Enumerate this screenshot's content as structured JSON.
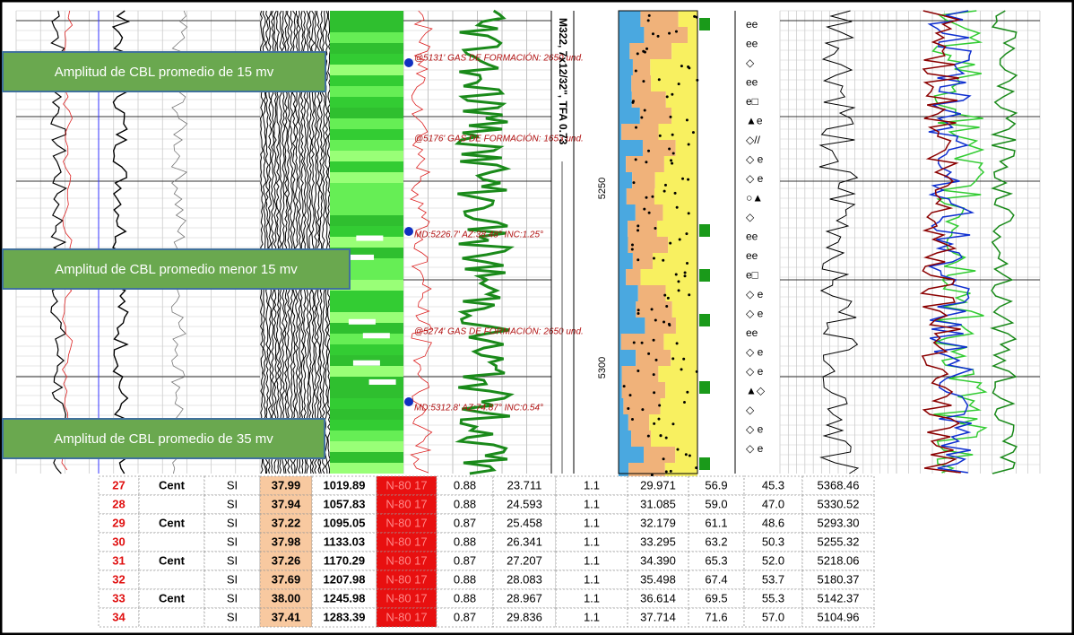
{
  "callouts": [
    "Amplitud de CBL promedio de 15 mv",
    "Amplitud de CBL promedio menor 15 mv",
    "Amplitud de CBL promedio de 35 mv"
  ],
  "annotations": [
    "@5131' GAS DE FORMACIÓN: 2650 und.",
    "@5176' GAS DE FORMACIÓN: 1653 und.",
    "MD:5226.7' AZ:38.48° INC:1.25°",
    "@5274' GAS DE FORMACIÓN: 2650 und.",
    "MD:5312.8' AZ:74.87° INC:0.54°"
  ],
  "vertical_label": "M322, 7x12/32'', TFA 0.73",
  "depth_labels": [
    "5250",
    "5300"
  ],
  "table": {
    "rows": [
      [
        "27",
        "Cent",
        "SI",
        "37.99",
        "1019.89",
        "N-80 17",
        "0.88",
        "23.711",
        "1.1",
        "29.971",
        "56.9",
        "45.3",
        "5368.46"
      ],
      [
        "28",
        null,
        "SI",
        "37.94",
        "1057.83",
        "N-80 17",
        "0.88",
        "24.593",
        "1.1",
        "31.085",
        "59.0",
        "47.0",
        "5330.52"
      ],
      [
        "29",
        "Cent",
        "SI",
        "37.22",
        "1095.05",
        "N-80 17",
        "0.87",
        "25.458",
        "1.1",
        "32.179",
        "61.1",
        "48.6",
        "5293.30"
      ],
      [
        "30",
        null,
        "SI",
        "37.98",
        "1133.03",
        "N-80 17",
        "0.88",
        "26.341",
        "1.1",
        "33.295",
        "63.2",
        "50.3",
        "5255.32"
      ],
      [
        "31",
        "Cent",
        "SI",
        "37.26",
        "1170.29",
        "N-80 17",
        "0.87",
        "27.207",
        "1.1",
        "34.390",
        "65.3",
        "52.0",
        "5218.06"
      ],
      [
        "32",
        null,
        "SI",
        "37.69",
        "1207.98",
        "N-80 17",
        "0.88",
        "28.083",
        "1.1",
        "35.498",
        "67.4",
        "53.7",
        "5180.37"
      ],
      [
        "33",
        "Cent",
        "SI",
        "38.00",
        "1245.98",
        "N-80 17",
        "0.88",
        "28.967",
        "1.1",
        "36.614",
        "69.5",
        "55.3",
        "5142.37"
      ],
      [
        "34",
        null,
        "SI",
        "37.41",
        "1283.39",
        "N-80 17",
        "0.87",
        "29.836",
        "1.1",
        "37.714",
        "71.6",
        "57.0",
        "5104.96"
      ]
    ]
  }
}
